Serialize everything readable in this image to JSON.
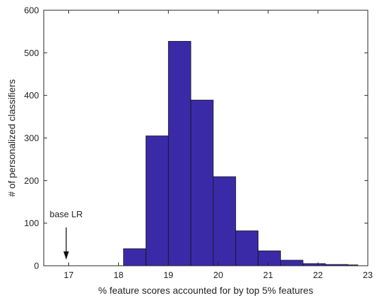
{
  "chart_data": {
    "type": "bar",
    "title": "",
    "xlabel": "% feature scores accounted for by top 5% features",
    "ylabel": "# of personalized classifiers",
    "xlim": [
      16.5,
      23
    ],
    "ylim": [
      0,
      600
    ],
    "xticks": [
      17,
      18,
      19,
      20,
      21,
      22,
      23
    ],
    "yticks": [
      0,
      100,
      200,
      300,
      400,
      500,
      600
    ],
    "bar_color": "#3b2aa8",
    "bins": [
      {
        "x0": 18.1,
        "x1": 18.55,
        "count": 40
      },
      {
        "x0": 18.55,
        "x1": 19.0,
        "count": 305
      },
      {
        "x0": 19.0,
        "x1": 19.45,
        "count": 527
      },
      {
        "x0": 19.45,
        "x1": 19.9,
        "count": 389
      },
      {
        "x0": 19.9,
        "x1": 20.35,
        "count": 209
      },
      {
        "x0": 20.35,
        "x1": 20.8,
        "count": 82
      },
      {
        "x0": 20.8,
        "x1": 21.25,
        "count": 35
      },
      {
        "x0": 21.25,
        "x1": 21.7,
        "count": 13
      },
      {
        "x0": 21.7,
        "x1": 22.15,
        "count": 5
      },
      {
        "x0": 22.15,
        "x1": 22.6,
        "count": 3
      },
      {
        "x0": 22.6,
        "x1": 22.8,
        "count": 2
      }
    ],
    "annotation": {
      "text": "base LR",
      "x": 16.95
    }
  }
}
